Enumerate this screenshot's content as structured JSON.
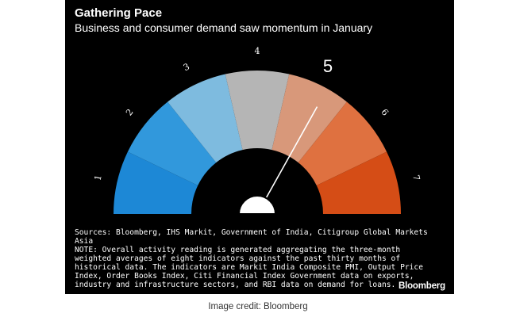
{
  "chart_data": {
    "type": "gauge",
    "title": "Gathering Pace",
    "subtitle": "Business and consumer demand saw momentum in January",
    "scale": [
      1,
      7
    ],
    "reading": 5,
    "segments": [
      {
        "label": "1",
        "color": "#1d88d6"
      },
      {
        "label": "2",
        "color": "#3198dc"
      },
      {
        "label": "3",
        "color": "#7ebbdf"
      },
      {
        "label": "4",
        "color": "#b5b5b5"
      },
      {
        "label": "5",
        "color": "#d8987a"
      },
      {
        "label": "6",
        "color": "#df7140"
      },
      {
        "label": "7",
        "color": "#d54d16"
      }
    ]
  },
  "notes": {
    "sources": "Sources: Bloomberg, IHS Markit, Government of India, Citigroup Global Markets Asia",
    "note": "NOTE: Overall activity reading is generated aggregating the three-month weighted averages of eight indicators against the past thirty months of historical data. The indicators are Markit India Composite PMI, Output Price Index, Order Books Index, Citi Financial Index Government data on exports, industry and infrastructure sectors, and RBI data on demand for loans."
  },
  "logo": "Bloomberg",
  "credit": "Image credit: Bloomberg",
  "colors": {
    "background": "#000000",
    "needle": "#ffffff"
  }
}
